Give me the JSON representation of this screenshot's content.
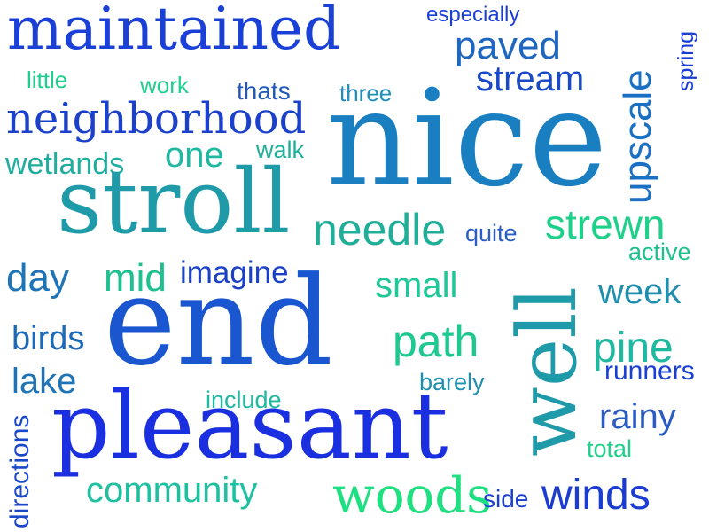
{
  "words": [
    {
      "text": "maintained",
      "color": "#1a40d8"
    },
    {
      "text": "especially",
      "color": "#1a3fd6"
    },
    {
      "text": "paved",
      "color": "#1e66c0"
    },
    {
      "text": "stream",
      "color": "#1948c8"
    },
    {
      "text": "upscale",
      "color": "#1a70c4"
    },
    {
      "text": "spring",
      "color": "#1a3cd2"
    },
    {
      "text": "little",
      "color": "#1fcf8e"
    },
    {
      "text": "work",
      "color": "#1fcf8e"
    },
    {
      "text": "thats",
      "color": "#2458b8"
    },
    {
      "text": "three",
      "color": "#1f8fb8"
    },
    {
      "text": "neighborhood",
      "color": "#1a40cc"
    },
    {
      "text": "nice",
      "color": "#1a7fc0"
    },
    {
      "text": "wetlands",
      "color": "#1fae9e"
    },
    {
      "text": "one",
      "color": "#1fb8a0"
    },
    {
      "text": "walk",
      "color": "#1fb09c"
    },
    {
      "text": "stroll",
      "color": "#1e9aa8"
    },
    {
      "text": "needle",
      "color": "#1fae98"
    },
    {
      "text": "quite",
      "color": "#2a5cc4"
    },
    {
      "text": "strewn",
      "color": "#1fd08a"
    },
    {
      "text": "active",
      "color": "#1fc08e"
    },
    {
      "text": "day",
      "color": "#1f74b8"
    },
    {
      "text": "mid",
      "color": "#1fc090"
    },
    {
      "text": "imagine",
      "color": "#1a40c8"
    },
    {
      "text": "small",
      "color": "#1fc898"
    },
    {
      "text": "well",
      "color": "#1f9aa8"
    },
    {
      "text": "week",
      "color": "#1f8fb0"
    },
    {
      "text": "birds",
      "color": "#1f6ab8"
    },
    {
      "text": "end",
      "color": "#1a56d0"
    },
    {
      "text": "path",
      "color": "#1fc890"
    },
    {
      "text": "pine",
      "color": "#1fb8a0"
    },
    {
      "text": "lake",
      "color": "#1f74b8"
    },
    {
      "text": "include",
      "color": "#1fb8a0"
    },
    {
      "text": "barely",
      "color": "#1f8fb0"
    },
    {
      "text": "runners",
      "color": "#1a3fd6"
    },
    {
      "text": "rainy",
      "color": "#2a5cc4"
    },
    {
      "text": "directions",
      "color": "#1a48c8"
    },
    {
      "text": "pleasant",
      "color": "#1a30e0"
    },
    {
      "text": "total",
      "color": "#1fd08a"
    },
    {
      "text": "community",
      "color": "#1fc0a0"
    },
    {
      "text": "woods",
      "color": "#1fe080"
    },
    {
      "text": "side",
      "color": "#1a40cc"
    },
    {
      "text": "winds",
      "color": "#1a3cd0"
    }
  ]
}
